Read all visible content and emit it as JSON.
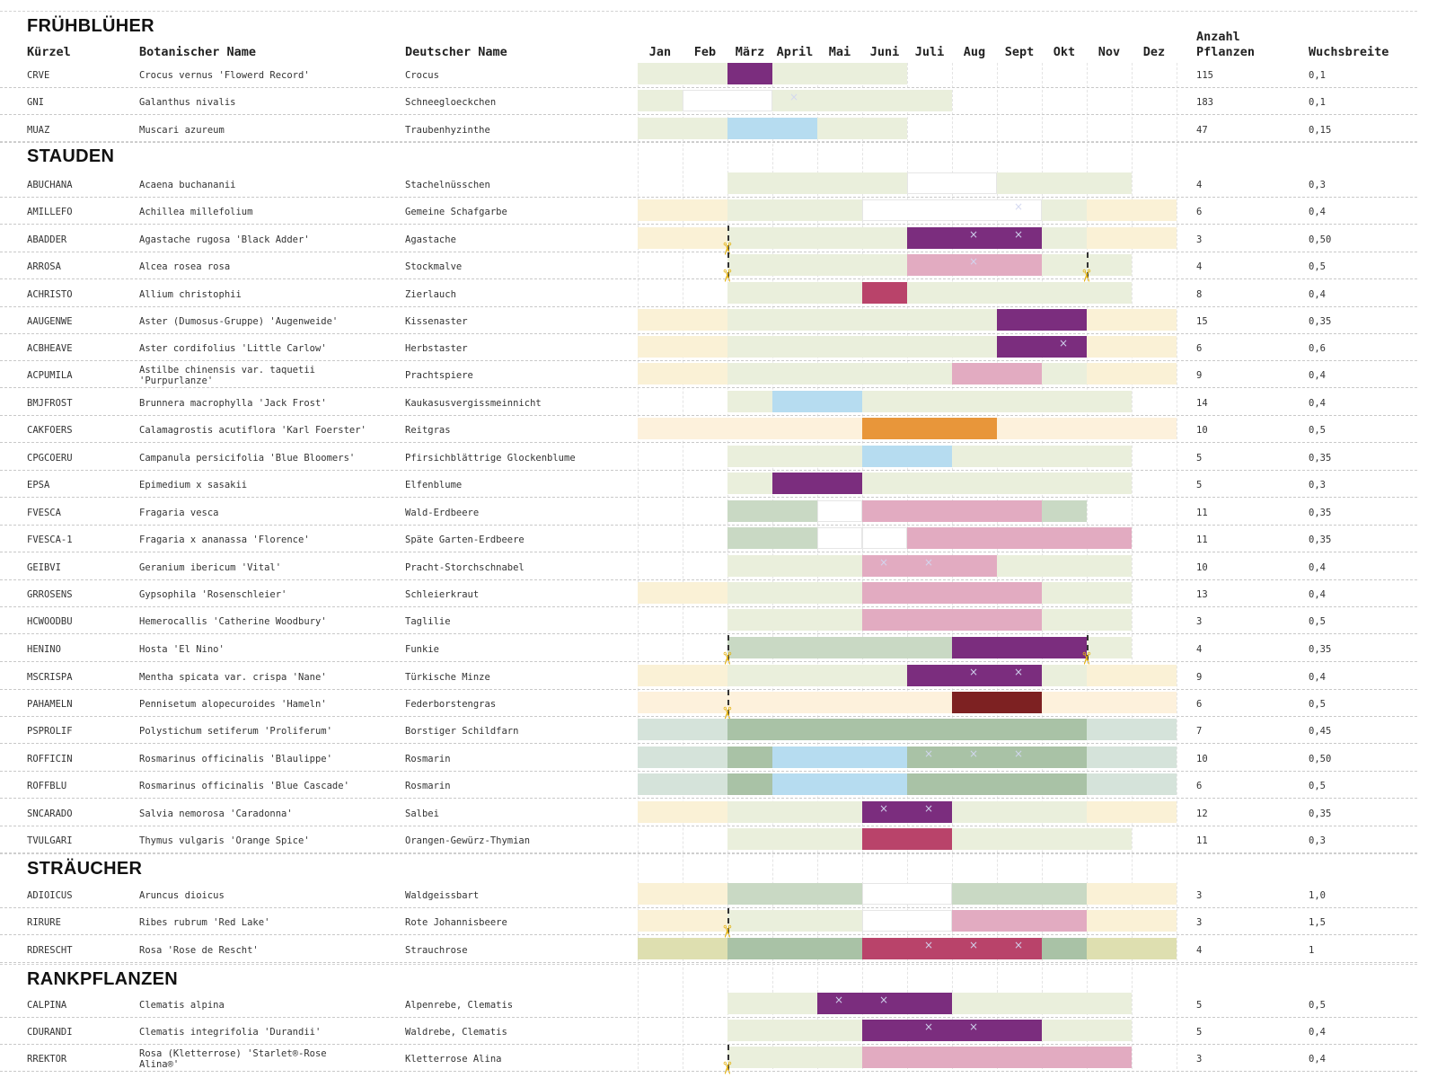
{
  "columns": {
    "code": "Kürzel",
    "botanical": "Botanischer Name",
    "german": "Deutscher Name",
    "count_line1": "Anzahl",
    "count_line2": "Pflanzen",
    "width": "Wuchsbreite"
  },
  "months": [
    "Jan",
    "Feb",
    "März",
    "April",
    "Mai",
    "Juni",
    "Juli",
    "Aug",
    "Sept",
    "Okt",
    "Nov",
    "Dez"
  ],
  "colors": {
    "purple": "#7b2d7e",
    "pink": "#e2abc1",
    "raspberry": "#b9436a",
    "light_blue": "#b6dcf0",
    "orange": "#e8963a",
    "dark_red": "#7d2122",
    "white_box": "#ffffff",
    "foliage_green": "#eaefdc",
    "foliage_green_deep": "#c9d9c4",
    "winter_yellow": "#faf1d6",
    "winter_beige": "#fdf1dc",
    "evergreen": "#a9c2a6",
    "fern_blue_green": "#d5e3da",
    "shrub_olive": "#dedfb0",
    "scissors": "#e4b311"
  },
  "sections": [
    {
      "title": "FRÜHBLÜHER",
      "rows": [
        {
          "code": "CRVE",
          "botanical": "Crocus vernus 'Flowerd Record'",
          "german": "Crocus",
          "count": "115",
          "width": "0,1"
        },
        {
          "code": "GNI",
          "botanical": "Galanthus nivalis",
          "german": "Schneegloeckchen",
          "count": "183",
          "width": "0,1"
        },
        {
          "code": "MUAZ",
          "botanical": "Muscari azureum",
          "german": "Traubenhyzinthe",
          "count": "47",
          "width": "0,15"
        }
      ]
    },
    {
      "title": "STAUDEN",
      "rows": [
        {
          "code": "ABUCHANA",
          "botanical": "Acaena buchananii",
          "german": "Stachelnüsschen",
          "count": "4",
          "width": "0,3"
        },
        {
          "code": "AMILLEFO",
          "botanical": "Achillea millefolium",
          "german": "Gemeine Schafgarbe",
          "count": "6",
          "width": "0,4"
        },
        {
          "code": "ABADDER",
          "botanical": "Agastache rugosa 'Black Adder'",
          "german": "Agastache",
          "count": "3",
          "width": "0,50"
        },
        {
          "code": "ARROSA",
          "botanical": "Alcea rosea rosa",
          "german": "Stockmalve",
          "count": "4",
          "width": "0,5"
        },
        {
          "code": "ACHRISTO",
          "botanical": "Allium christophii",
          "german": "Zierlauch",
          "count": "8",
          "width": "0,4"
        },
        {
          "code": "AAUGENWE",
          "botanical": "Aster (Dumosus-Gruppe) 'Augenweide'",
          "german": "Kissenaster",
          "count": "15",
          "width": "0,35"
        },
        {
          "code": "ACBHEAVE",
          "botanical": "Aster cordifolius 'Little Carlow'",
          "german": "Herbstaster",
          "count": "6",
          "width": "0,6"
        },
        {
          "code": "ACPUMILA",
          "botanical": "Astilbe chinensis var. taquetii 'Purpurlanze'",
          "german": "Prachtspiere",
          "count": "9",
          "width": "0,4"
        },
        {
          "code": "BMJFROST",
          "botanical": "Brunnera macrophylla 'Jack Frost'",
          "german": "Kaukasusvergissmeinnicht",
          "count": "14",
          "width": "0,4"
        },
        {
          "code": "CAKFOERS",
          "botanical": "Calamagrostis acutiflora 'Karl Foerster'",
          "german": "Reitgras",
          "count": "10",
          "width": "0,5"
        },
        {
          "code": "CPGCOERU",
          "botanical": "Campanula persicifolia 'Blue Bloomers'",
          "german": "Pfirsichblättrige Glockenblume",
          "count": "5",
          "width": "0,35"
        },
        {
          "code": "EPSA",
          "botanical": "Epimedium x sasakii",
          "german": "Elfenblume",
          "count": "5",
          "width": "0,3"
        },
        {
          "code": "FVESCA",
          "botanical": "Fragaria vesca",
          "german": "Wald-Erdbeere",
          "count": "11",
          "width": "0,35"
        },
        {
          "code": "FVESCA-1",
          "botanical": "Fragaria x ananassa 'Florence'",
          "german": "Späte Garten-Erdbeere",
          "count": "11",
          "width": "0,35"
        },
        {
          "code": "GEIBVI",
          "botanical": "Geranium ibericum 'Vital'",
          "german": "Pracht-Storchschnabel",
          "count": "10",
          "width": "0,4"
        },
        {
          "code": "GRROSENS",
          "botanical": "Gypsophila 'Rosenschleier'",
          "german": "Schleierkraut",
          "count": "13",
          "width": "0,4"
        },
        {
          "code": "HCWOODBU",
          "botanical": "Hemerocallis 'Catherine Woodbury'",
          "german": "Taglilie",
          "count": "3",
          "width": "0,5"
        },
        {
          "code": "HENINO",
          "botanical": "Hosta 'El Nino'",
          "german": "Funkie",
          "count": "4",
          "width": "0,35"
        },
        {
          "code": "MSCRISPA",
          "botanical": "Mentha spicata var. crispa 'Nane'",
          "german": "Türkische Minze",
          "count": "9",
          "width": "0,4"
        },
        {
          "code": "PAHAMELN",
          "botanical": "Pennisetum alopecuroides 'Hameln'",
          "german": "Federborstengras",
          "count": "6",
          "width": "0,5"
        },
        {
          "code": "PSPROLIF",
          "botanical": "Polystichum setiferum 'Proliferum'",
          "german": "Borstiger Schildfarn",
          "count": "7",
          "width": "0,45"
        },
        {
          "code": "ROFFICIN",
          "botanical": "Rosmarinus officinalis 'Blaulippe'",
          "german": "Rosmarin",
          "count": "10",
          "width": "0,50"
        },
        {
          "code": "ROFFBLU",
          "botanical": "Rosmarinus officinalis 'Blue Cascade'",
          "german": "Rosmarin",
          "count": "6",
          "width": "0,5"
        },
        {
          "code": "SNCARADO",
          "botanical": "Salvia nemorosa 'Caradonna'",
          "german": "Salbei",
          "count": "12",
          "width": "0,35"
        },
        {
          "code": "TVULGARI",
          "botanical": "Thymus vulgaris 'Orange Spice'",
          "german": "Orangen-Gewürz-Thymian",
          "count": "11",
          "width": "0,3"
        }
      ]
    },
    {
      "title": "STRÄUCHER",
      "rows": [
        {
          "code": "ADIOICUS",
          "botanical": "Aruncus dioicus",
          "german": "Waldgeissbart",
          "count": "3",
          "width": "1,0"
        },
        {
          "code": "RIRURE",
          "botanical": "Ribes rubrum 'Red Lake'",
          "german": "Rote Johannisbeere",
          "count": "3",
          "width": "1,5"
        },
        {
          "code": "RDRESCHT",
          "botanical": "Rosa 'Rose de Rescht'",
          "german": "Strauchrose",
          "count": "4",
          "width": "1"
        }
      ]
    },
    {
      "title": "RANKPFLANZEN",
      "rows": [
        {
          "code": "CALPINA",
          "botanical": "Clematis alpina",
          "german": "Alpenrebe, Clematis",
          "count": "5",
          "width": "0,5"
        },
        {
          "code": "CDURANDI",
          "botanical": "Clematis integrifolia 'Durandii'",
          "german": "Waldrebe, Clematis",
          "count": "5",
          "width": "0,4"
        },
        {
          "code": "RREKTOR",
          "botanical": "Rosa (Kletterrose) 'Starlet®-Rose Alina®'",
          "german": "Kletterrose Alina",
          "count": "3",
          "width": "0,4"
        }
      ]
    }
  ]
}
